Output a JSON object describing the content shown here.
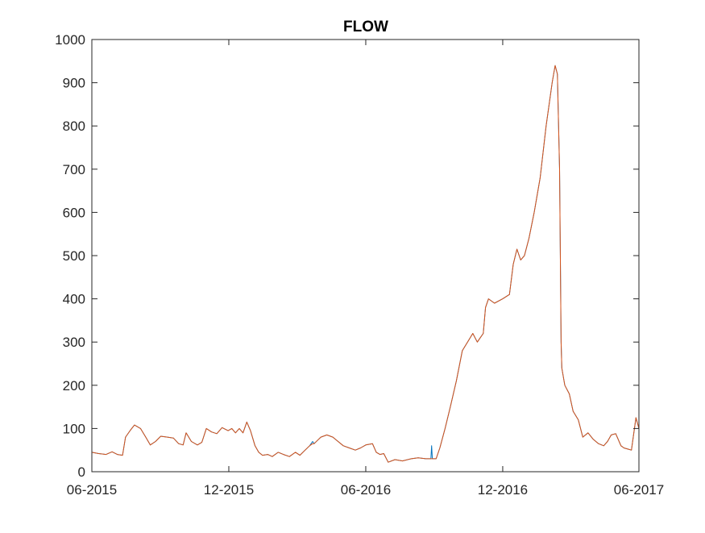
{
  "chart_data": {
    "type": "line",
    "title": "FLOW",
    "xlabel": "",
    "ylabel": "",
    "ylim": [
      0,
      1000
    ],
    "yticks": [
      0,
      100,
      200,
      300,
      400,
      500,
      600,
      700,
      800,
      900,
      1000
    ],
    "xlim": [
      "2015-06-01",
      "2017-06-01"
    ],
    "xticks": [
      "2015-06-01",
      "2015-12-01",
      "2016-06-01",
      "2016-12-01",
      "2017-06-01"
    ],
    "xticklabels": [
      "06-2015",
      "12-2015",
      "06-2016",
      "12-2016",
      "06-2017"
    ],
    "grid": false,
    "legend": "none",
    "series": [
      {
        "color": "#0072BD",
        "points": [
          [
            "2015-06-01",
            45
          ],
          [
            "2015-06-10",
            42
          ],
          [
            "2015-06-20",
            40
          ],
          [
            "2015-06-28",
            46
          ],
          [
            "2015-07-05",
            40
          ],
          [
            "2015-07-12",
            38
          ],
          [
            "2015-07-16",
            80
          ],
          [
            "2015-07-22",
            95
          ],
          [
            "2015-07-28",
            108
          ],
          [
            "2015-08-05",
            100
          ],
          [
            "2015-08-12",
            80
          ],
          [
            "2015-08-18",
            62
          ],
          [
            "2015-08-25",
            70
          ],
          [
            "2015-09-01",
            82
          ],
          [
            "2015-09-10",
            80
          ],
          [
            "2015-09-18",
            78
          ],
          [
            "2015-09-25",
            65
          ],
          [
            "2015-10-01",
            62
          ],
          [
            "2015-10-05",
            90
          ],
          [
            "2015-10-12",
            70
          ],
          [
            "2015-10-20",
            62
          ],
          [
            "2015-10-26",
            68
          ],
          [
            "2015-11-01",
            100
          ],
          [
            "2015-11-08",
            92
          ],
          [
            "2015-11-15",
            88
          ],
          [
            "2015-11-22",
            102
          ],
          [
            "2015-11-30",
            95
          ],
          [
            "2015-12-05",
            100
          ],
          [
            "2015-12-10",
            90
          ],
          [
            "2015-12-15",
            100
          ],
          [
            "2015-12-20",
            90
          ],
          [
            "2015-12-25",
            115
          ],
          [
            "2015-12-30",
            95
          ],
          [
            "2016-01-05",
            60
          ],
          [
            "2016-01-10",
            45
          ],
          [
            "2016-01-15",
            38
          ],
          [
            "2016-01-22",
            40
          ],
          [
            "2016-01-28",
            35
          ],
          [
            "2016-02-05",
            45
          ],
          [
            "2016-02-12",
            40
          ],
          [
            "2016-02-20",
            35
          ],
          [
            "2016-02-28",
            45
          ],
          [
            "2016-03-05",
            38
          ],
          [
            "2016-03-12",
            50
          ],
          [
            "2016-03-18",
            60
          ],
          [
            "2016-03-22",
            70
          ],
          [
            "2016-03-24",
            65
          ],
          [
            "2016-03-30",
            75
          ],
          [
            "2016-04-02",
            80
          ],
          [
            "2016-04-10",
            85
          ],
          [
            "2016-04-18",
            80
          ],
          [
            "2016-04-25",
            70
          ],
          [
            "2016-05-02",
            60
          ],
          [
            "2016-05-10",
            55
          ],
          [
            "2016-05-18",
            50
          ],
          [
            "2016-05-25",
            55
          ],
          [
            "2016-06-01",
            62
          ],
          [
            "2016-06-10",
            65
          ],
          [
            "2016-06-15",
            45
          ],
          [
            "2016-06-20",
            40
          ],
          [
            "2016-06-25",
            42
          ],
          [
            "2016-07-01",
            22
          ],
          [
            "2016-07-10",
            28
          ],
          [
            "2016-07-20",
            25
          ],
          [
            "2016-08-01",
            30
          ],
          [
            "2016-08-10",
            32
          ],
          [
            "2016-08-20",
            30
          ],
          [
            "2016-08-27",
            30
          ],
          [
            "2016-08-28",
            60
          ],
          [
            "2016-08-29",
            30
          ],
          [
            "2016-09-03",
            30
          ],
          [
            "2016-09-08",
            55
          ],
          [
            "2016-09-15",
            100
          ],
          [
            "2016-09-22",
            150
          ],
          [
            "2016-09-30",
            210
          ],
          [
            "2016-10-08",
            280
          ],
          [
            "2016-10-15",
            300
          ],
          [
            "2016-10-22",
            320
          ],
          [
            "2016-10-28",
            300
          ],
          [
            "2016-11-01",
            310
          ],
          [
            "2016-11-05",
            320
          ],
          [
            "2016-11-08",
            380
          ],
          [
            "2016-11-12",
            400
          ],
          [
            "2016-11-20",
            390
          ],
          [
            "2016-12-01",
            400
          ],
          [
            "2016-12-10",
            410
          ],
          [
            "2016-12-15",
            480
          ],
          [
            "2016-12-20",
            515
          ],
          [
            "2016-12-25",
            490
          ],
          [
            "2016-12-30",
            500
          ],
          [
            "2017-01-05",
            540
          ],
          [
            "2017-01-12",
            600
          ],
          [
            "2017-01-20",
            680
          ],
          [
            "2017-01-28",
            800
          ],
          [
            "2017-02-05",
            900
          ],
          [
            "2017-02-09",
            940
          ],
          [
            "2017-02-12",
            920
          ],
          [
            "2017-02-15",
            700
          ],
          [
            "2017-02-17",
            300
          ],
          [
            "2017-02-18",
            240
          ],
          [
            "2017-02-22",
            200
          ],
          [
            "2017-02-28",
            180
          ],
          [
            "2017-03-05",
            140
          ],
          [
            "2017-03-12",
            120
          ],
          [
            "2017-03-18",
            80
          ],
          [
            "2017-03-25",
            90
          ],
          [
            "2017-04-01",
            75
          ],
          [
            "2017-04-08",
            65
          ],
          [
            "2017-04-15",
            60
          ],
          [
            "2017-04-20",
            70
          ],
          [
            "2017-04-25",
            85
          ],
          [
            "2017-05-01",
            88
          ],
          [
            "2017-05-08",
            60
          ],
          [
            "2017-05-12",
            55
          ],
          [
            "2017-05-18",
            52
          ],
          [
            "2017-05-22",
            50
          ],
          [
            "2017-05-28",
            125
          ],
          [
            "2017-06-02",
            100
          ],
          [
            "2017-06-05",
            70
          ],
          [
            "2017-06-10",
            75
          ]
        ]
      },
      {
        "color": "#D95319",
        "points": [
          [
            "2015-06-01",
            45
          ],
          [
            "2015-06-10",
            42
          ],
          [
            "2015-06-20",
            40
          ],
          [
            "2015-06-28",
            46
          ],
          [
            "2015-07-05",
            40
          ],
          [
            "2015-07-12",
            38
          ],
          [
            "2015-07-16",
            80
          ],
          [
            "2015-07-22",
            95
          ],
          [
            "2015-07-28",
            108
          ],
          [
            "2015-08-05",
            100
          ],
          [
            "2015-08-12",
            80
          ],
          [
            "2015-08-18",
            62
          ],
          [
            "2015-08-25",
            70
          ],
          [
            "2015-09-01",
            82
          ],
          [
            "2015-09-10",
            80
          ],
          [
            "2015-09-18",
            78
          ],
          [
            "2015-09-25",
            65
          ],
          [
            "2015-10-01",
            62
          ],
          [
            "2015-10-05",
            90
          ],
          [
            "2015-10-12",
            70
          ],
          [
            "2015-10-20",
            62
          ],
          [
            "2015-10-26",
            68
          ],
          [
            "2015-11-01",
            100
          ],
          [
            "2015-11-08",
            92
          ],
          [
            "2015-11-15",
            88
          ],
          [
            "2015-11-22",
            102
          ],
          [
            "2015-11-30",
            95
          ],
          [
            "2015-12-05",
            100
          ],
          [
            "2015-12-10",
            90
          ],
          [
            "2015-12-15",
            100
          ],
          [
            "2015-12-20",
            90
          ],
          [
            "2015-12-25",
            115
          ],
          [
            "2015-12-30",
            95
          ],
          [
            "2016-01-05",
            60
          ],
          [
            "2016-01-10",
            45
          ],
          [
            "2016-01-15",
            38
          ],
          [
            "2016-01-22",
            40
          ],
          [
            "2016-01-28",
            35
          ],
          [
            "2016-02-05",
            45
          ],
          [
            "2016-02-12",
            40
          ],
          [
            "2016-02-20",
            35
          ],
          [
            "2016-02-28",
            45
          ],
          [
            "2016-03-05",
            38
          ],
          [
            "2016-03-12",
            50
          ],
          [
            "2016-03-18",
            60
          ],
          [
            "2016-03-22",
            65
          ],
          [
            "2016-03-24",
            65
          ],
          [
            "2016-03-30",
            75
          ],
          [
            "2016-04-02",
            80
          ],
          [
            "2016-04-10",
            85
          ],
          [
            "2016-04-18",
            80
          ],
          [
            "2016-04-25",
            70
          ],
          [
            "2016-05-02",
            60
          ],
          [
            "2016-05-10",
            55
          ],
          [
            "2016-05-18",
            50
          ],
          [
            "2016-05-25",
            55
          ],
          [
            "2016-06-01",
            62
          ],
          [
            "2016-06-10",
            65
          ],
          [
            "2016-06-15",
            45
          ],
          [
            "2016-06-20",
            40
          ],
          [
            "2016-06-25",
            42
          ],
          [
            "2016-07-01",
            22
          ],
          [
            "2016-07-10",
            28
          ],
          [
            "2016-07-20",
            25
          ],
          [
            "2016-08-01",
            30
          ],
          [
            "2016-08-10",
            32
          ],
          [
            "2016-08-20",
            30
          ],
          [
            "2016-08-27",
            30
          ],
          [
            "2016-08-28",
            30
          ],
          [
            "2016-08-29",
            30
          ],
          [
            "2016-09-03",
            30
          ],
          [
            "2016-09-08",
            55
          ],
          [
            "2016-09-15",
            100
          ],
          [
            "2016-09-22",
            150
          ],
          [
            "2016-09-30",
            210
          ],
          [
            "2016-10-08",
            280
          ],
          [
            "2016-10-15",
            300
          ],
          [
            "2016-10-22",
            320
          ],
          [
            "2016-10-28",
            300
          ],
          [
            "2016-11-01",
            310
          ],
          [
            "2016-11-05",
            320
          ],
          [
            "2016-11-08",
            380
          ],
          [
            "2016-11-12",
            400
          ],
          [
            "2016-11-20",
            390
          ],
          [
            "2016-12-01",
            400
          ],
          [
            "2016-12-10",
            410
          ],
          [
            "2016-12-15",
            480
          ],
          [
            "2016-12-20",
            515
          ],
          [
            "2016-12-25",
            490
          ],
          [
            "2016-12-30",
            500
          ],
          [
            "2017-01-05",
            540
          ],
          [
            "2017-01-12",
            600
          ],
          [
            "2017-01-20",
            680
          ],
          [
            "2017-01-28",
            800
          ],
          [
            "2017-02-05",
            900
          ],
          [
            "2017-02-09",
            940
          ],
          [
            "2017-02-12",
            920
          ],
          [
            "2017-02-15",
            700
          ],
          [
            "2017-02-17",
            300
          ],
          [
            "2017-02-18",
            240
          ],
          [
            "2017-02-22",
            200
          ],
          [
            "2017-02-28",
            180
          ],
          [
            "2017-03-05",
            140
          ],
          [
            "2017-03-12",
            120
          ],
          [
            "2017-03-18",
            80
          ],
          [
            "2017-03-25",
            90
          ],
          [
            "2017-04-01",
            75
          ],
          [
            "2017-04-08",
            65
          ],
          [
            "2017-04-15",
            60
          ],
          [
            "2017-04-20",
            70
          ],
          [
            "2017-04-25",
            85
          ],
          [
            "2017-05-01",
            88
          ],
          [
            "2017-05-08",
            60
          ],
          [
            "2017-05-12",
            55
          ],
          [
            "2017-05-18",
            52
          ],
          [
            "2017-05-22",
            50
          ],
          [
            "2017-05-28",
            125
          ],
          [
            "2017-06-02",
            100
          ],
          [
            "2017-06-05",
            70
          ],
          [
            "2017-06-10",
            75
          ]
        ]
      }
    ]
  }
}
